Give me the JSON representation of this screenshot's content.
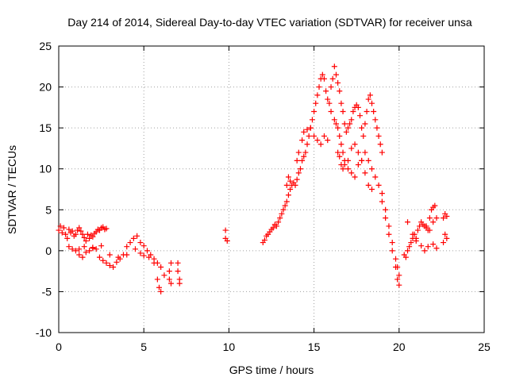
{
  "chart_data": {
    "type": "scatter",
    "title": "Day 214 of 2014, Sidereal Day-to-day VTEC variation (SDTVAR) for receiver unsa",
    "xlabel": "GPS time / hours",
    "ylabel": "SDTVAR / TECUs",
    "xlim": [
      0,
      25
    ],
    "ylim": [
      -10,
      25
    ],
    "xticks": [
      0,
      5,
      10,
      15,
      20,
      25
    ],
    "yticks": [
      -10,
      -5,
      0,
      5,
      10,
      15,
      20,
      25
    ],
    "grid": true,
    "marker": "+",
    "color": "#ff0000",
    "series": [
      {
        "name": "SDTVAR",
        "x": [
          0.0,
          0.1,
          0.2,
          0.3,
          0.4,
          0.5,
          0.6,
          0.7,
          0.8,
          0.9,
          1.0,
          1.1,
          1.2,
          1.3,
          1.4,
          1.5,
          1.6,
          1.7,
          1.8,
          1.9,
          2.0,
          2.1,
          2.2,
          2.3,
          2.4,
          2.5,
          2.6,
          2.7,
          2.8,
          0.6,
          0.8,
          1.0,
          1.2,
          1.4,
          1.6,
          1.8,
          2.0,
          2.2,
          2.4,
          2.6,
          2.8,
          3.0,
          3.2,
          3.4,
          3.6,
          3.8,
          4.0,
          4.2,
          4.4,
          4.6,
          4.8,
          5.0,
          5.2,
          5.4,
          5.6,
          5.8,
          6.0,
          6.2,
          1.2,
          1.5,
          2.0,
          2.5,
          3.0,
          3.5,
          4.0,
          4.5,
          4.8,
          5.0,
          5.3,
          5.6,
          5.8,
          5.9,
          6.0,
          6.5,
          6.5,
          6.6,
          6.6,
          7.0,
          7.0,
          7.1,
          7.1,
          9.8,
          9.8,
          9.9,
          12.0,
          12.1,
          12.2,
          12.3,
          12.4,
          12.5,
          12.6,
          12.7,
          12.8,
          12.9,
          13.0,
          13.1,
          13.2,
          13.3,
          13.4,
          13.5,
          13.6,
          13.7,
          13.8,
          13.9,
          14.0,
          14.1,
          14.2,
          14.3,
          14.4,
          14.5,
          14.6,
          14.7,
          14.8,
          14.9,
          15.0,
          15.1,
          15.2,
          15.3,
          15.4,
          15.5,
          15.6,
          15.7,
          15.8,
          15.9,
          16.0,
          13.4,
          13.5,
          13.6,
          14.0,
          14.1,
          14.3,
          14.4,
          14.6,
          14.8,
          15.0,
          15.2,
          15.4,
          15.6,
          15.8,
          16.0,
          16.1,
          16.2,
          16.3,
          16.4,
          16.5,
          16.6,
          16.7,
          16.8,
          16.9,
          17.0,
          17.1,
          17.2,
          17.3,
          17.4,
          17.5,
          17.6,
          17.7,
          17.8,
          17.9,
          18.0,
          18.1,
          18.2,
          18.3,
          18.4,
          18.5,
          18.6,
          18.7,
          18.8,
          18.9,
          19.0,
          16.2,
          16.3,
          16.4,
          16.5,
          16.6,
          16.7,
          16.8,
          17.0,
          17.2,
          17.4,
          17.6,
          17.8,
          18.0,
          18.2,
          18.4,
          18.6,
          18.8,
          19.0,
          19.2,
          19.4,
          19.6,
          19.8,
          19.9,
          20.0,
          16.4,
          16.5,
          16.6,
          16.7,
          16.8,
          17.0,
          17.2,
          17.4,
          17.6,
          17.8,
          18.0,
          18.2,
          18.4,
          19.0,
          19.2,
          19.4,
          19.6,
          19.8,
          19.9,
          20.0,
          20.3,
          20.4,
          20.5,
          20.6,
          20.7,
          20.8,
          20.9,
          21.0,
          21.1,
          21.2,
          21.3,
          21.4,
          21.5,
          21.6,
          21.7,
          21.8,
          21.9,
          22.0,
          22.1,
          20.5,
          20.8,
          21.0,
          21.3,
          21.5,
          21.7,
          22.0,
          22.2,
          21.6,
          21.8,
          22.0,
          22.2,
          22.6,
          22.7,
          22.8,
          22.6,
          22.7,
          22.8
        ],
        "y": [
          2.5,
          3.0,
          2.2,
          2.8,
          2.0,
          1.5,
          2.6,
          2.2,
          2.4,
          1.8,
          2.0,
          2.5,
          2.8,
          2.4,
          2.0,
          1.6,
          1.2,
          2.0,
          1.5,
          1.9,
          1.7,
          2.1,
          2.3,
          2.6,
          2.5,
          2.8,
          2.9,
          2.6,
          2.7,
          0.5,
          0.2,
          0.0,
          -0.5,
          -0.8,
          -0.2,
          0.0,
          0.4,
          0.2,
          -0.8,
          -1.2,
          -1.5,
          -1.8,
          -2.0,
          -1.4,
          -1.0,
          -0.5,
          0.5,
          1.0,
          1.5,
          1.8,
          1.0,
          0.6,
          0.0,
          -0.5,
          -1.0,
          -1.5,
          -2.0,
          -3.0,
          0.2,
          0.5,
          0.3,
          0.6,
          -0.5,
          -0.8,
          -0.5,
          0.2,
          -0.3,
          -0.6,
          -0.8,
          -1.5,
          -3.5,
          -4.5,
          -5.0,
          -2.5,
          -3.5,
          -4.0,
          -1.5,
          -1.5,
          -2.5,
          -3.5,
          -4.0,
          2.5,
          1.5,
          1.2,
          1.0,
          1.3,
          1.8,
          2.0,
          2.3,
          2.6,
          2.8,
          3.2,
          3.0,
          3.5,
          4.0,
          4.5,
          5.0,
          5.5,
          6.0,
          6.8,
          7.5,
          8.0,
          8.3,
          8.0,
          8.7,
          9.5,
          10.0,
          11.0,
          11.5,
          12.0,
          13.0,
          14.0,
          15.0,
          16.0,
          17.0,
          18.0,
          19.0,
          20.0,
          21.0,
          21.5,
          21.0,
          19.5,
          18.5,
          18.0,
          17.0,
          8.0,
          9.0,
          8.5,
          11.0,
          12.0,
          13.5,
          14.5,
          14.8,
          15.0,
          14.0,
          13.5,
          13.0,
          14.0,
          13.5,
          20.0,
          21.0,
          22.5,
          21.5,
          20.5,
          19.5,
          18.0,
          17.0,
          15.5,
          14.5,
          15.0,
          15.5,
          16.0,
          17.0,
          17.5,
          17.8,
          17.5,
          16.5,
          15.0,
          14.0,
          15.5,
          17.0,
          18.5,
          19.0,
          18.0,
          17.0,
          16.0,
          15.0,
          14.0,
          13.0,
          12.0,
          16.0,
          15.5,
          15.0,
          14.0,
          13.0,
          12.0,
          11.0,
          10.0,
          9.5,
          9.0,
          10.5,
          11.0,
          12.0,
          11.0,
          10.0,
          9.0,
          8.0,
          7.0,
          5.0,
          3.0,
          1.0,
          -1.0,
          -2.0,
          -3.0,
          12.0,
          11.5,
          10.5,
          10.0,
          10.5,
          11.0,
          12.5,
          13.0,
          12.0,
          11.0,
          9.5,
          8.0,
          7.5,
          6.0,
          4.0,
          2.0,
          0.0,
          -2.0,
          -3.5,
          -4.2,
          -0.5,
          -0.8,
          0.0,
          0.5,
          1.0,
          1.5,
          2.0,
          1.5,
          2.5,
          3.0,
          3.5,
          3.2,
          3.0,
          2.8,
          2.5,
          4.0,
          5.0,
          5.3,
          5.5,
          3.5,
          2.0,
          1.2,
          0.6,
          0.0,
          0.5,
          0.8,
          0.3,
          3.0,
          2.5,
          3.5,
          4.0,
          1.0,
          2.0,
          1.5,
          4.0,
          4.5,
          4.2
        ]
      }
    ]
  }
}
